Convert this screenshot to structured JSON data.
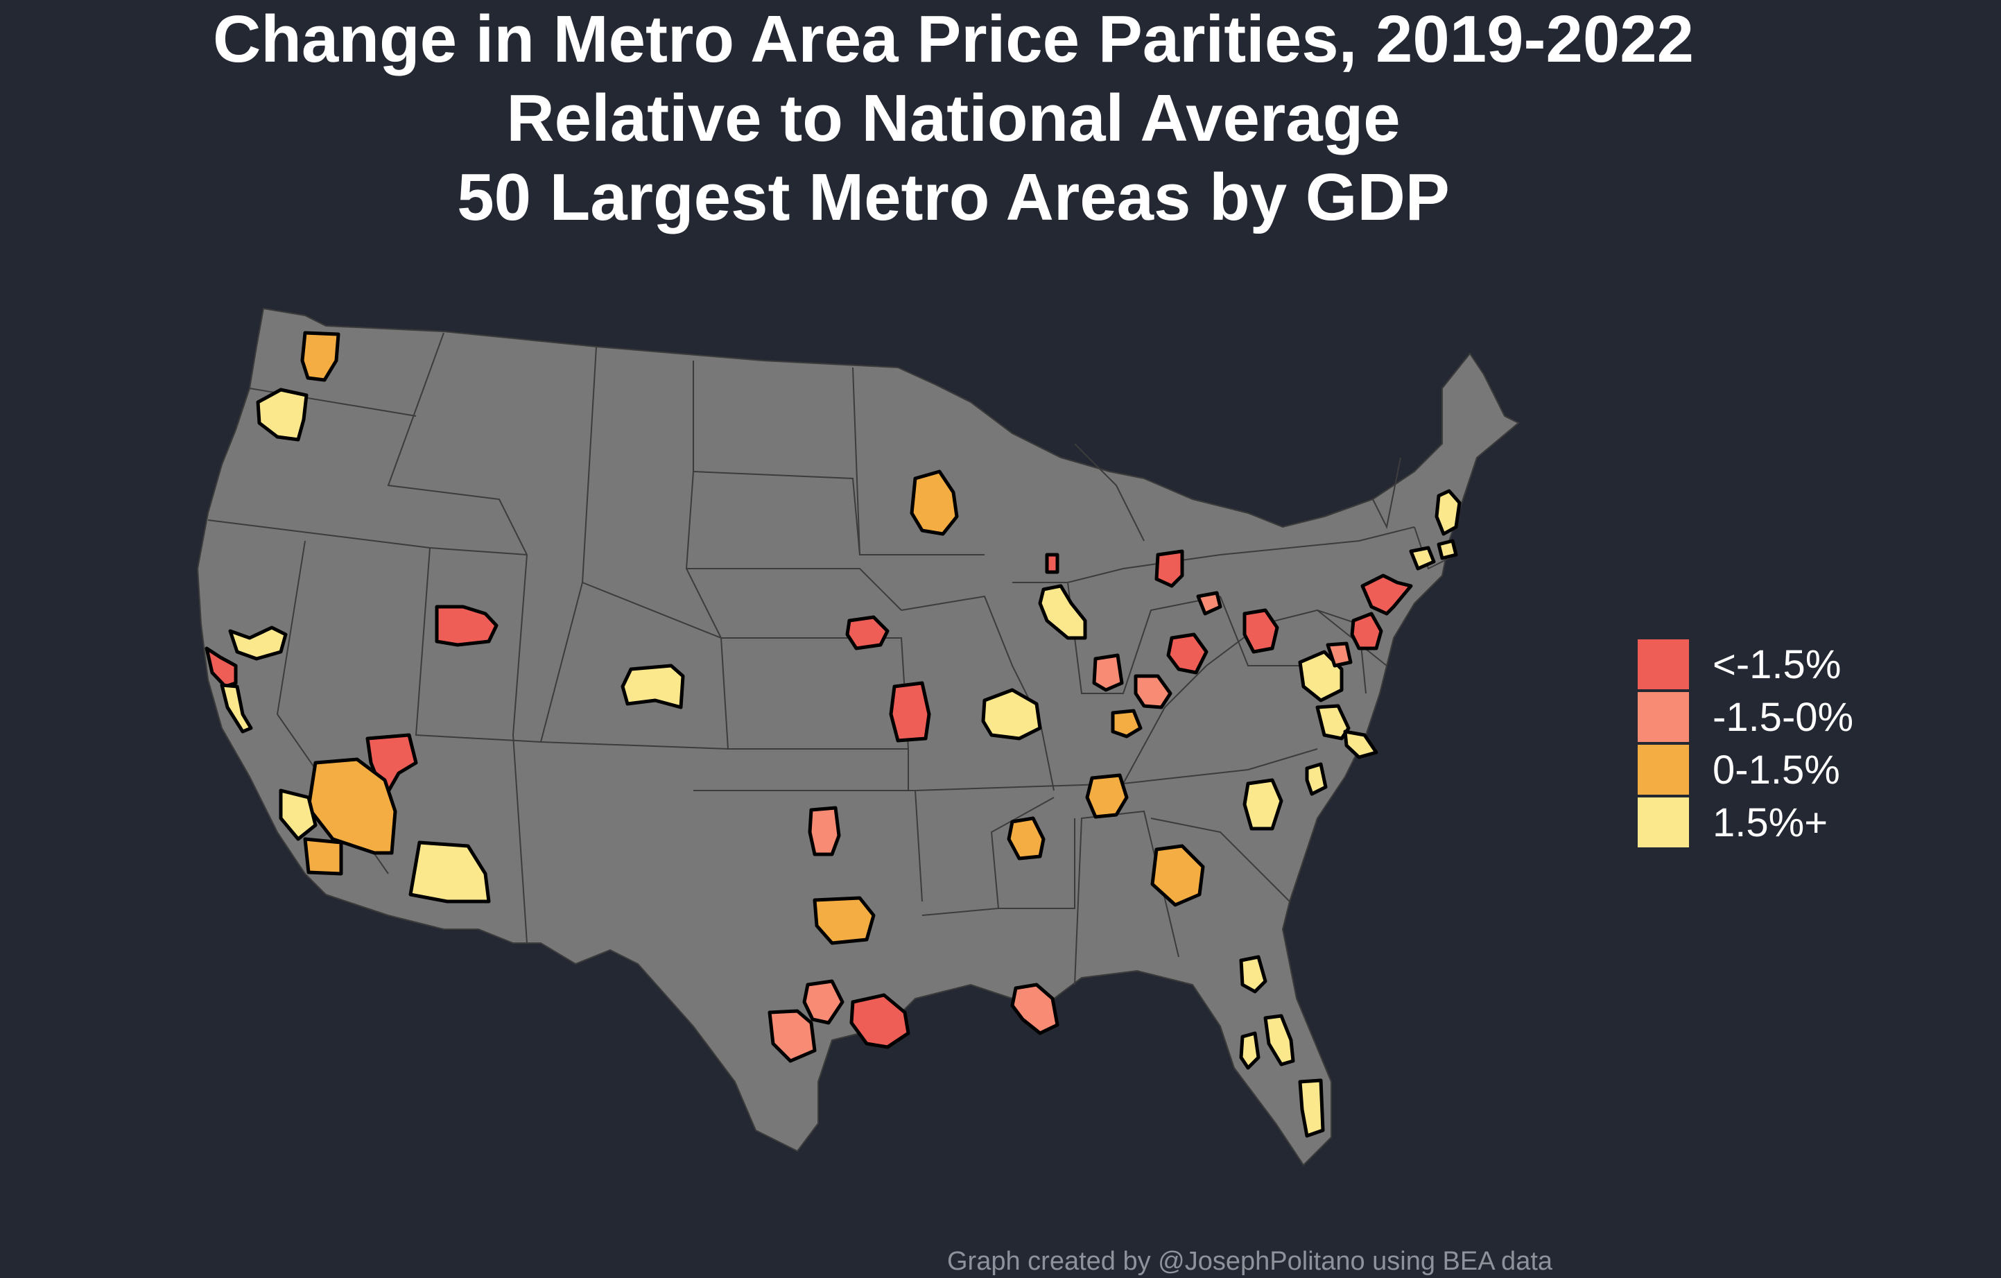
{
  "title": {
    "line1": "Change in Metro Area Price Parities, 2019-2022",
    "line2": "Relative to National Average",
    "line3": "50 Largest Metro Areas by GDP"
  },
  "legend": {
    "items": [
      {
        "label": "<-1.5%",
        "color": "#ee5e57"
      },
      {
        "label": "-1.5-0%",
        "color": "#f78b74"
      },
      {
        "label": "0-1.5%",
        "color": "#f4ad42"
      },
      {
        "label": "1.5%+",
        "color": "#fce88c"
      }
    ]
  },
  "map": {
    "land_color": "#787878",
    "border_color": "#3c3c3c",
    "background_color": "#242833"
  },
  "caption": "Graph created by @JosephPolitano using BEA data"
}
